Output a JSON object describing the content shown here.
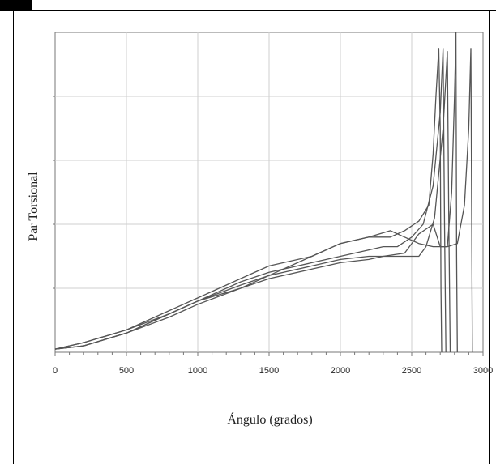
{
  "header": {
    "text": ""
  },
  "chart_data": {
    "type": "line",
    "title": "",
    "xlabel": "Ángulo (grados)",
    "ylabel": "Par Torsional",
    "xlim": [
      0,
      3000
    ],
    "ylim": [
      0,
      100
    ],
    "xticks": [
      "0",
      "500",
      "1000",
      "1500",
      "2000",
      "2500",
      "3000"
    ],
    "grid": true,
    "legend": "none",
    "colors": {
      "line": "#555555",
      "grid": "#cfcfcf",
      "axis": "#777777"
    },
    "series": [
      {
        "x": [
          0,
          200,
          500,
          800,
          1000,
          1300,
          1500,
          1800,
          2000,
          2200,
          2350,
          2450,
          2550,
          2620,
          2650,
          2670,
          2690,
          2700,
          2705,
          2710
        ],
        "y": [
          1,
          3,
          7,
          13,
          17,
          23,
          27,
          30,
          34,
          36,
          36,
          38,
          41,
          46,
          62,
          80,
          95,
          70,
          20,
          0
        ]
      },
      {
        "x": [
          0,
          200,
          500,
          800,
          1000,
          1300,
          1500,
          1800,
          2000,
          2200,
          2300,
          2400,
          2500,
          2580,
          2650,
          2700,
          2720,
          2730,
          2740
        ],
        "y": [
          1,
          3,
          7,
          12,
          16,
          22,
          25,
          28,
          30,
          32,
          33,
          33,
          36,
          40,
          52,
          75,
          95,
          40,
          0
        ]
      },
      {
        "x": [
          0,
          200,
          500,
          800,
          1000,
          1300,
          1500,
          1800,
          2000,
          2200,
          2300,
          2400,
          2500,
          2550,
          2600,
          2660,
          2720,
          2750,
          2760,
          2770
        ],
        "y": [
          1,
          2,
          6,
          12,
          16,
          21,
          24,
          27,
          29,
          30,
          30,
          30,
          30,
          30,
          33,
          42,
          70,
          94,
          40,
          0
        ]
      },
      {
        "x": [
          0,
          200,
          500,
          800,
          1000,
          1300,
          1500,
          1800,
          2000,
          2200,
          2300,
          2450,
          2550,
          2650,
          2700,
          2750,
          2780,
          2800,
          2810,
          2815,
          2820
        ],
        "y": [
          1,
          2,
          6,
          11,
          15,
          20,
          23,
          26,
          28,
          29,
          30,
          31,
          37,
          40,
          33,
          33,
          50,
          80,
          100,
          30,
          0
        ]
      },
      {
        "x": [
          0,
          200,
          500,
          800,
          1000,
          1300,
          1500,
          1800,
          2000,
          2200,
          2350,
          2450,
          2550,
          2650,
          2750,
          2820,
          2870,
          2900,
          2915,
          2925
        ],
        "y": [
          1,
          2,
          6,
          12,
          16,
          20,
          24,
          30,
          34,
          36,
          38,
          36,
          34,
          33,
          33,
          34,
          46,
          70,
          95,
          0
        ]
      }
    ]
  }
}
